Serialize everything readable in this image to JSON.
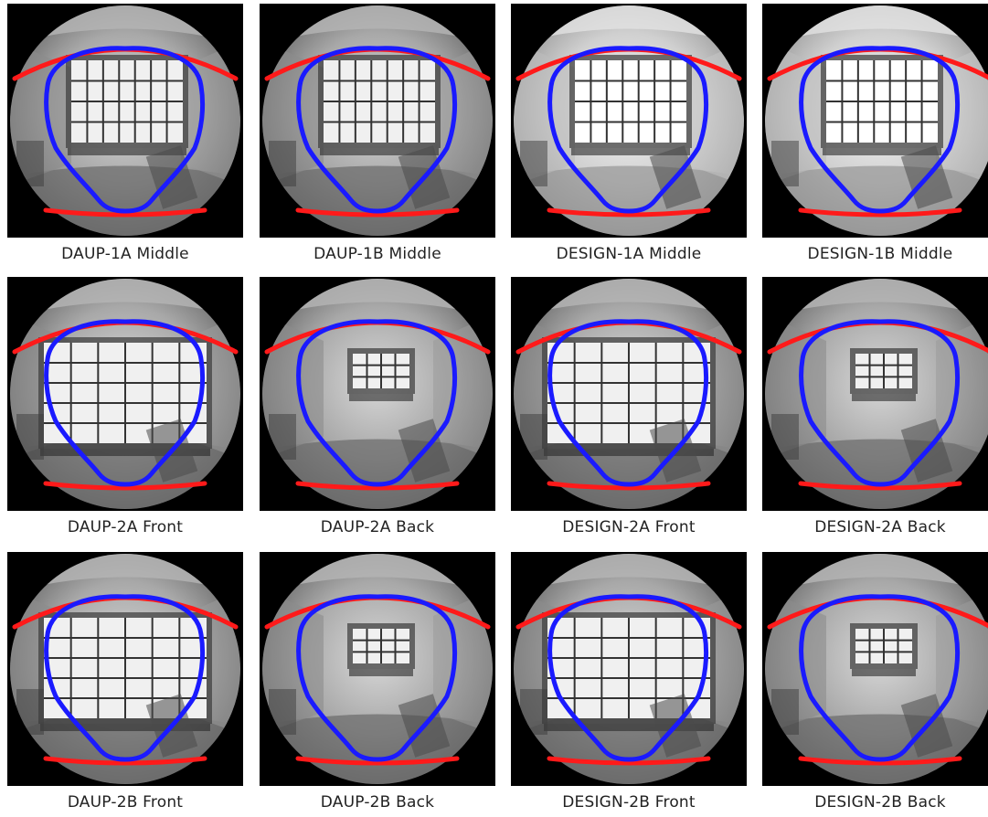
{
  "colors": {
    "background": "#000000",
    "boundary_blue": "#1a1aff",
    "boundary_red": "#ff1a1a",
    "caption_text": "#222222"
  },
  "rows": [
    {
      "panels": [
        {
          "caption": "DAUP-1A Middle",
          "scene": "window-small",
          "bright": false
        },
        {
          "caption": "DAUP-1B Middle",
          "scene": "window-small",
          "bright": false
        },
        {
          "caption": "DESIGN-1A Middle",
          "scene": "window-small",
          "bright": true
        },
        {
          "caption": "DESIGN-1B Middle",
          "scene": "window-small",
          "bright": true
        }
      ]
    },
    {
      "panels": [
        {
          "caption": "DAUP-2A Front",
          "scene": "window-large",
          "bright": false
        },
        {
          "caption": "DAUP-2A Back",
          "scene": "window-far",
          "bright": false
        },
        {
          "caption": "DESIGN-2A Front",
          "scene": "window-large",
          "bright": false
        },
        {
          "caption": "DESIGN-2A Back",
          "scene": "window-far",
          "bright": false
        }
      ]
    },
    {
      "panels": [
        {
          "caption": "DAUP-2B Front",
          "scene": "window-large",
          "bright": false
        },
        {
          "caption": "DAUP-2B Back",
          "scene": "window-far",
          "bright": false
        },
        {
          "caption": "DESIGN-2B Front",
          "scene": "window-large",
          "bright": false
        },
        {
          "caption": "DESIGN-2B Back",
          "scene": "window-far",
          "bright": false
        }
      ]
    }
  ]
}
